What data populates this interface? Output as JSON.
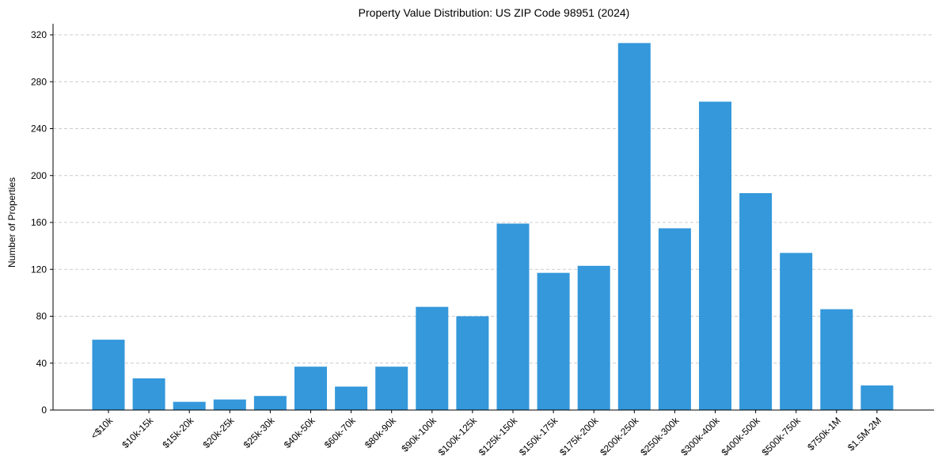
{
  "chart_data": {
    "type": "bar",
    "title": "Property Value Distribution: US ZIP Code 98951 (2024)",
    "xlabel": "",
    "ylabel": "Number of Properties",
    "ylim": [
      0,
      320
    ],
    "yticks": [
      0,
      40,
      80,
      120,
      160,
      200,
      240,
      280,
      320
    ],
    "grid": "y-dashed",
    "bar_color": "#3498db",
    "categories": [
      "<$10k",
      "$10k-15k",
      "$15k-20k",
      "$20k-25k",
      "$25k-30k",
      "$40k-50k",
      "$60k-70k",
      "$80k-90k",
      "$90k-100k",
      "$100k-125k",
      "$125k-150k",
      "$150k-175k",
      "$175k-200k",
      "$200k-250k",
      "$250k-300k",
      "$300k-400k",
      "$400k-500k",
      "$500k-750k",
      "$750k-1M",
      "$1.5M-2M"
    ],
    "values": [
      60,
      27,
      7,
      9,
      12,
      37,
      20,
      37,
      88,
      80,
      159,
      117,
      123,
      313,
      155,
      263,
      185,
      134,
      86,
      21
    ]
  }
}
